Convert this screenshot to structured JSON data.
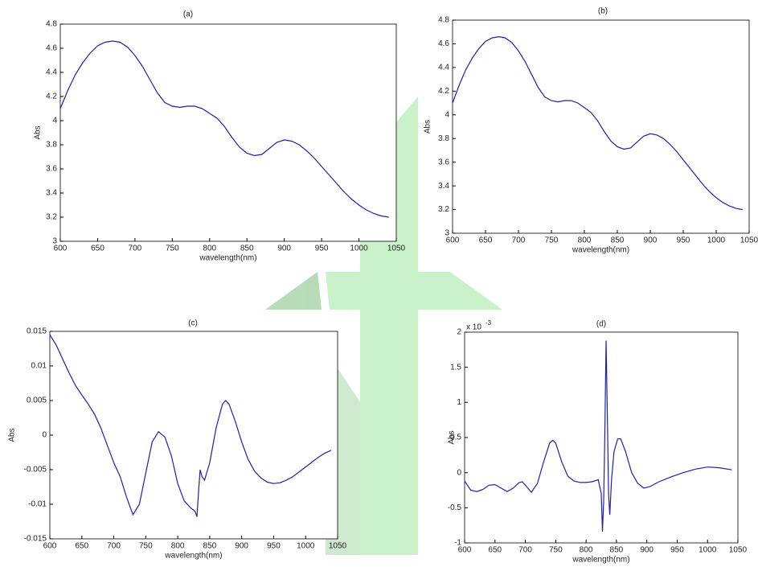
{
  "chart_data": [
    {
      "type": "line",
      "title": "(a)",
      "x_label": "wavelength(nm)",
      "y_label": "Abs",
      "color": "#1f1fb0",
      "x": [
        600,
        610,
        620,
        630,
        640,
        650,
        660,
        670,
        680,
        690,
        700,
        710,
        720,
        730,
        740,
        750,
        760,
        770,
        780,
        790,
        800,
        810,
        820,
        830,
        840,
        850,
        860,
        870,
        880,
        890,
        900,
        910,
        920,
        930,
        940,
        950,
        960,
        970,
        980,
        990,
        1000,
        1010,
        1020,
        1030,
        1040
      ],
      "values": [
        4.1,
        4.25,
        4.38,
        4.48,
        4.56,
        4.62,
        4.65,
        4.66,
        4.65,
        4.61,
        4.54,
        4.45,
        4.34,
        4.23,
        4.15,
        4.12,
        4.11,
        4.12,
        4.12,
        4.1,
        4.06,
        4.02,
        3.95,
        3.86,
        3.78,
        3.73,
        3.71,
        3.72,
        3.77,
        3.82,
        3.84,
        3.83,
        3.8,
        3.75,
        3.69,
        3.62,
        3.55,
        3.48,
        3.41,
        3.35,
        3.3,
        3.26,
        3.23,
        3.21,
        3.2
      ],
      "xlim": [
        600,
        1050
      ],
      "xticks": [
        600,
        650,
        700,
        750,
        800,
        850,
        900,
        950,
        1000,
        1050
      ],
      "ylim": [
        3,
        4.8
      ],
      "yticks": [
        3,
        3.2,
        3.4,
        3.6,
        3.8,
        4,
        4.2,
        4.4,
        4.6,
        4.8
      ]
    },
    {
      "type": "line",
      "title": "(b)",
      "x_label": "wavelength(nm)",
      "y_label": "Abs",
      "color": "#1f1fb0",
      "x": [
        600,
        610,
        620,
        630,
        640,
        650,
        660,
        670,
        680,
        690,
        700,
        710,
        720,
        730,
        740,
        750,
        760,
        770,
        780,
        790,
        800,
        810,
        820,
        830,
        840,
        850,
        860,
        870,
        880,
        890,
        900,
        910,
        920,
        930,
        940,
        950,
        960,
        970,
        980,
        990,
        1000,
        1010,
        1020,
        1030,
        1040
      ],
      "values": [
        4.1,
        4.25,
        4.38,
        4.48,
        4.56,
        4.62,
        4.65,
        4.66,
        4.65,
        4.61,
        4.54,
        4.45,
        4.34,
        4.23,
        4.15,
        4.12,
        4.11,
        4.12,
        4.12,
        4.1,
        4.06,
        4.02,
        3.95,
        3.86,
        3.78,
        3.73,
        3.71,
        3.72,
        3.77,
        3.82,
        3.84,
        3.83,
        3.8,
        3.75,
        3.69,
        3.62,
        3.55,
        3.48,
        3.41,
        3.35,
        3.3,
        3.26,
        3.23,
        3.21,
        3.2
      ],
      "xlim": [
        600,
        1050
      ],
      "xticks": [
        600,
        650,
        700,
        750,
        800,
        850,
        900,
        950,
        1000,
        1050
      ],
      "ylim": [
        3,
        4.8
      ],
      "yticks": [
        3,
        3.2,
        3.4,
        3.6,
        3.8,
        4,
        4.2,
        4.4,
        4.6,
        4.8
      ]
    },
    {
      "type": "line",
      "title": "(c)",
      "x_label": "wavelength(nm)",
      "y_label": "Abs",
      "color": "#1f1fb0",
      "x": [
        600,
        610,
        620,
        630,
        640,
        650,
        660,
        670,
        680,
        690,
        700,
        710,
        720,
        730,
        740,
        750,
        760,
        770,
        780,
        790,
        800,
        810,
        820,
        827,
        830,
        833,
        835,
        838,
        842,
        850,
        860,
        870,
        875,
        880,
        890,
        900,
        910,
        920,
        930,
        940,
        950,
        960,
        970,
        980,
        990,
        1000,
        1010,
        1020,
        1030,
        1040
      ],
      "values": [
        0.0145,
        0.013,
        0.011,
        0.009,
        0.0072,
        0.0058,
        0.0045,
        0.003,
        0.001,
        -0.0015,
        -0.004,
        -0.006,
        -0.009,
        -0.0115,
        -0.01,
        -0.0055,
        -0.001,
        0.0005,
        -0.0003,
        -0.003,
        -0.007,
        -0.0095,
        -0.0105,
        -0.011,
        -0.0118,
        -0.0075,
        -0.005,
        -0.006,
        -0.0065,
        -0.004,
        0.001,
        0.0045,
        0.005,
        0.0045,
        0.002,
        -0.001,
        -0.0035,
        -0.0052,
        -0.0062,
        -0.0068,
        -0.007,
        -0.0069,
        -0.0065,
        -0.006,
        -0.0053,
        -0.0046,
        -0.0039,
        -0.0032,
        -0.0026,
        -0.0022
      ],
      "xlim": [
        600,
        1050
      ],
      "xticks": [
        600,
        650,
        700,
        750,
        800,
        850,
        900,
        950,
        1000,
        1050
      ],
      "ylim": [
        -0.015,
        0.015
      ],
      "yticks": [
        -0.015,
        -0.01,
        -0.005,
        0,
        0.005,
        0.01,
        0.015
      ]
    },
    {
      "type": "line",
      "title": "(d)",
      "x_label": "wavelength(nm)",
      "y_label": "Abs",
      "y_multiplier": "x 10",
      "y_multiplier_exponent": "-3",
      "color": "#1f1fb0",
      "x": [
        600,
        610,
        620,
        630,
        640,
        650,
        660,
        670,
        680,
        690,
        695,
        700,
        710,
        720,
        730,
        740,
        745,
        750,
        760,
        770,
        780,
        790,
        800,
        810,
        820,
        825,
        827,
        829,
        831,
        833,
        835,
        837,
        839,
        842,
        846,
        852,
        857,
        865,
        875,
        885,
        895,
        905,
        920,
        940,
        960,
        980,
        1000,
        1020,
        1040
      ],
      "values": [
        -0.12,
        -0.25,
        -0.27,
        -0.24,
        -0.18,
        -0.17,
        -0.22,
        -0.27,
        -0.22,
        -0.14,
        -0.13,
        -0.18,
        -0.28,
        -0.15,
        0.15,
        0.42,
        0.46,
        0.42,
        0.15,
        -0.05,
        -0.12,
        -0.14,
        -0.14,
        -0.13,
        -0.1,
        -0.3,
        -0.84,
        -0.4,
        0.6,
        1.88,
        0.8,
        -0.3,
        -0.6,
        -0.1,
        0.3,
        0.48,
        0.48,
        0.3,
        0.0,
        -0.15,
        -0.22,
        -0.2,
        -0.13,
        -0.06,
        0.0,
        0.05,
        0.08,
        0.07,
        0.04
      ],
      "xlim": [
        600,
        1050
      ],
      "xticks": [
        600,
        650,
        700,
        750,
        800,
        850,
        900,
        950,
        1000,
        1050
      ],
      "ylim": [
        -1,
        2
      ],
      "yticks": [
        -1,
        -0.5,
        0,
        0.5,
        1,
        1.5,
        2
      ]
    }
  ]
}
